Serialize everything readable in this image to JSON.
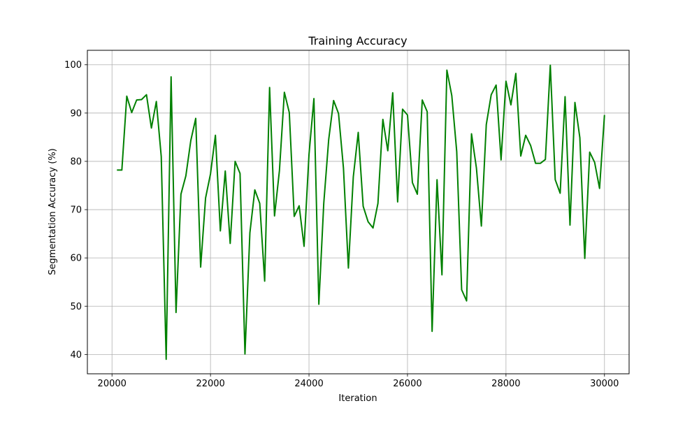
{
  "chart_data": {
    "type": "line",
    "title": "Training Accuracy",
    "xlabel": "Iteration",
    "ylabel": "Segmentation Accuracy (%)",
    "xlim": [
      19500,
      30500
    ],
    "ylim": [
      36,
      103
    ],
    "xticks": [
      20000,
      22000,
      24000,
      26000,
      28000,
      30000
    ],
    "yticks": [
      40,
      50,
      60,
      70,
      80,
      90,
      100
    ],
    "grid": true,
    "line_color": "#008000",
    "series": [
      {
        "x": [
          20100,
          20200,
          20300,
          20400,
          20500,
          20600,
          20700,
          20800,
          20900,
          21000,
          21100,
          21200,
          21300,
          21400,
          21500,
          21600,
          21700,
          21800,
          21900,
          22000,
          22100,
          22200,
          22300,
          22400,
          22500,
          22600,
          22700,
          22800,
          22900,
          23000,
          23100,
          23200,
          23300,
          23400,
          23500,
          23600,
          23700,
          23800,
          23900,
          24000,
          24100,
          24200,
          24300,
          24400,
          24500,
          24600,
          24700,
          24800,
          24900,
          25000,
          25100,
          25200,
          25300,
          25400,
          25500,
          25600,
          25700,
          25800,
          25900,
          26000,
          26100,
          26200,
          26300,
          26400,
          26500,
          26600,
          26700,
          26800,
          26900,
          27000,
          27100,
          27200,
          27300,
          27400,
          27500,
          27600,
          27700,
          27800,
          27900,
          28000,
          28100,
          28200,
          28300,
          28400,
          28500,
          28600,
          28700,
          28800,
          28900,
          29000,
          29100,
          29200,
          29300,
          29400,
          29500,
          29600,
          29700,
          29800,
          29900,
          30000
        ],
        "values": [
          78.2,
          78.2,
          93.5,
          90.1,
          92.7,
          92.8,
          93.8,
          86.9,
          92.4,
          81.0,
          39.0,
          97.5,
          48.7,
          73.2,
          77.0,
          84.3,
          88.9,
          58.1,
          72.4,
          77.4,
          85.4,
          65.6,
          78.0,
          63.0,
          80.0,
          77.5,
          40.1,
          65.2,
          74.1,
          71.3,
          55.2,
          95.3,
          68.7,
          78.1,
          94.3,
          90.1,
          68.6,
          70.8,
          62.4,
          81.4,
          93.0,
          50.4,
          71.3,
          84.5,
          92.6,
          89.9,
          78.6,
          57.9,
          76.8,
          86.0,
          70.7,
          67.5,
          66.2,
          71.3,
          88.7,
          82.2,
          94.2,
          71.6,
          90.8,
          89.6,
          75.6,
          73.2,
          92.7,
          90.3,
          44.8,
          76.2,
          56.5,
          98.9,
          93.6,
          82.0,
          53.4,
          51.1,
          85.7,
          78.6,
          66.6,
          87.6,
          93.8,
          95.8,
          80.3,
          96.6,
          91.7,
          98.2,
          81.1,
          85.4,
          83.3,
          79.6,
          79.6,
          80.4,
          99.9,
          76.2,
          73.4,
          93.4,
          66.8,
          92.2,
          84.9,
          59.9,
          81.9,
          79.8,
          74.4,
          89.6
        ]
      }
    ]
  }
}
